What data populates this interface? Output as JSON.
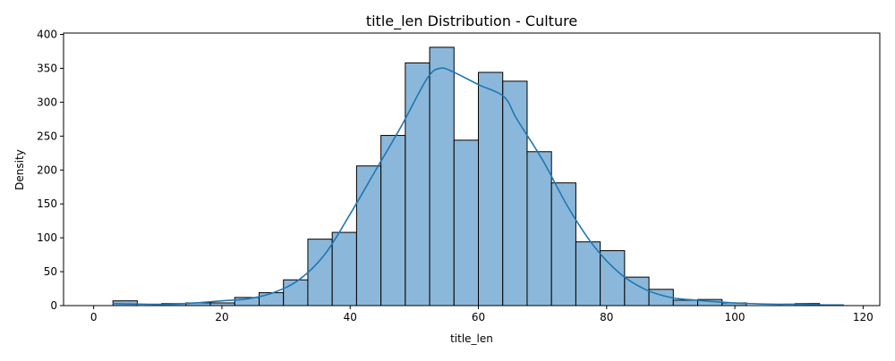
{
  "chart_data": {
    "type": "bar",
    "title": "title_len Distribution - Culture",
    "xlabel": "title_len",
    "ylabel": "Density",
    "xlim": [
      -4.7,
      122.6
    ],
    "ylim": [
      0,
      402
    ],
    "xticks": [
      0,
      20,
      40,
      60,
      80,
      100,
      120
    ],
    "yticks": [
      0,
      50,
      100,
      150,
      200,
      250,
      300,
      350,
      400
    ],
    "grid": false,
    "legend": "none",
    "bar_color": "#8bb8da",
    "bar_edge_color": "#000000",
    "kde_color": "#1f77b4",
    "bins": {
      "start": 3,
      "width": 3.8,
      "counts": [
        7,
        0,
        3,
        4,
        4,
        12,
        19,
        38,
        98,
        108,
        206,
        251,
        358,
        381,
        244,
        344,
        331,
        227,
        181,
        94,
        81,
        42,
        24,
        8,
        9,
        4,
        0,
        0,
        3,
        0
      ]
    },
    "kde": {
      "x": [
        3,
        8,
        12,
        16,
        20,
        24,
        28,
        32,
        36,
        40,
        44,
        48,
        52,
        54,
        56,
        60,
        64,
        66,
        70,
        74,
        78,
        82,
        86,
        90,
        94,
        98,
        102,
        106,
        110,
        114,
        117
      ],
      "y": [
        3,
        2,
        2,
        4,
        7,
        10,
        19,
        38,
        75,
        135,
        200,
        265,
        335,
        350,
        345,
        326,
        308,
        275,
        215,
        145,
        88,
        48,
        24,
        12,
        8,
        5,
        3,
        2,
        2,
        1,
        1
      ]
    }
  }
}
